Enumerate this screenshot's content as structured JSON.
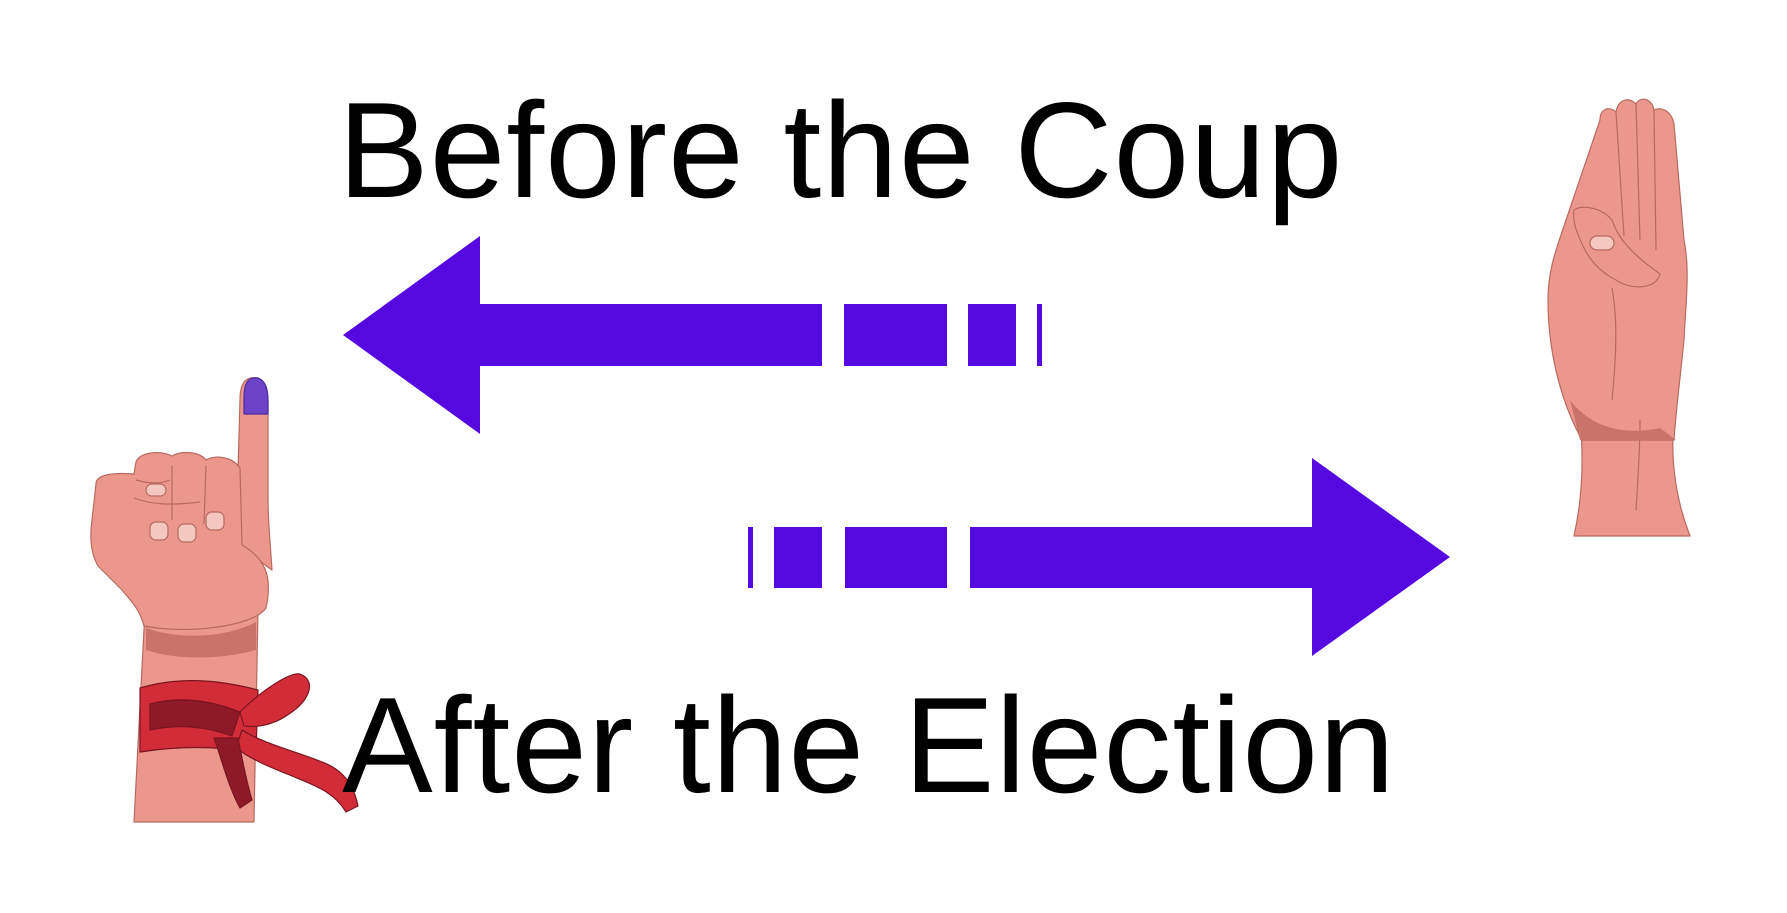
{
  "headlines": {
    "before": "Before the Coup",
    "after": "After the Election"
  },
  "colors": {
    "arrow": "#5509e0",
    "skin": "#ec978c",
    "skin_shadow": "#c97468",
    "ribbon": "#d22c38",
    "ribbon_dark": "#8d1a26",
    "ink_stain": "#6d43c8",
    "text": "#000000",
    "background": "#ffffff"
  },
  "icons": {
    "left_figure": "raised-index-finger-with-inked-tip-and-red-ribbon",
    "right_figure": "three-finger-salute-hand",
    "top_arrow": "arrow-left",
    "bottom_arrow": "arrow-right"
  }
}
